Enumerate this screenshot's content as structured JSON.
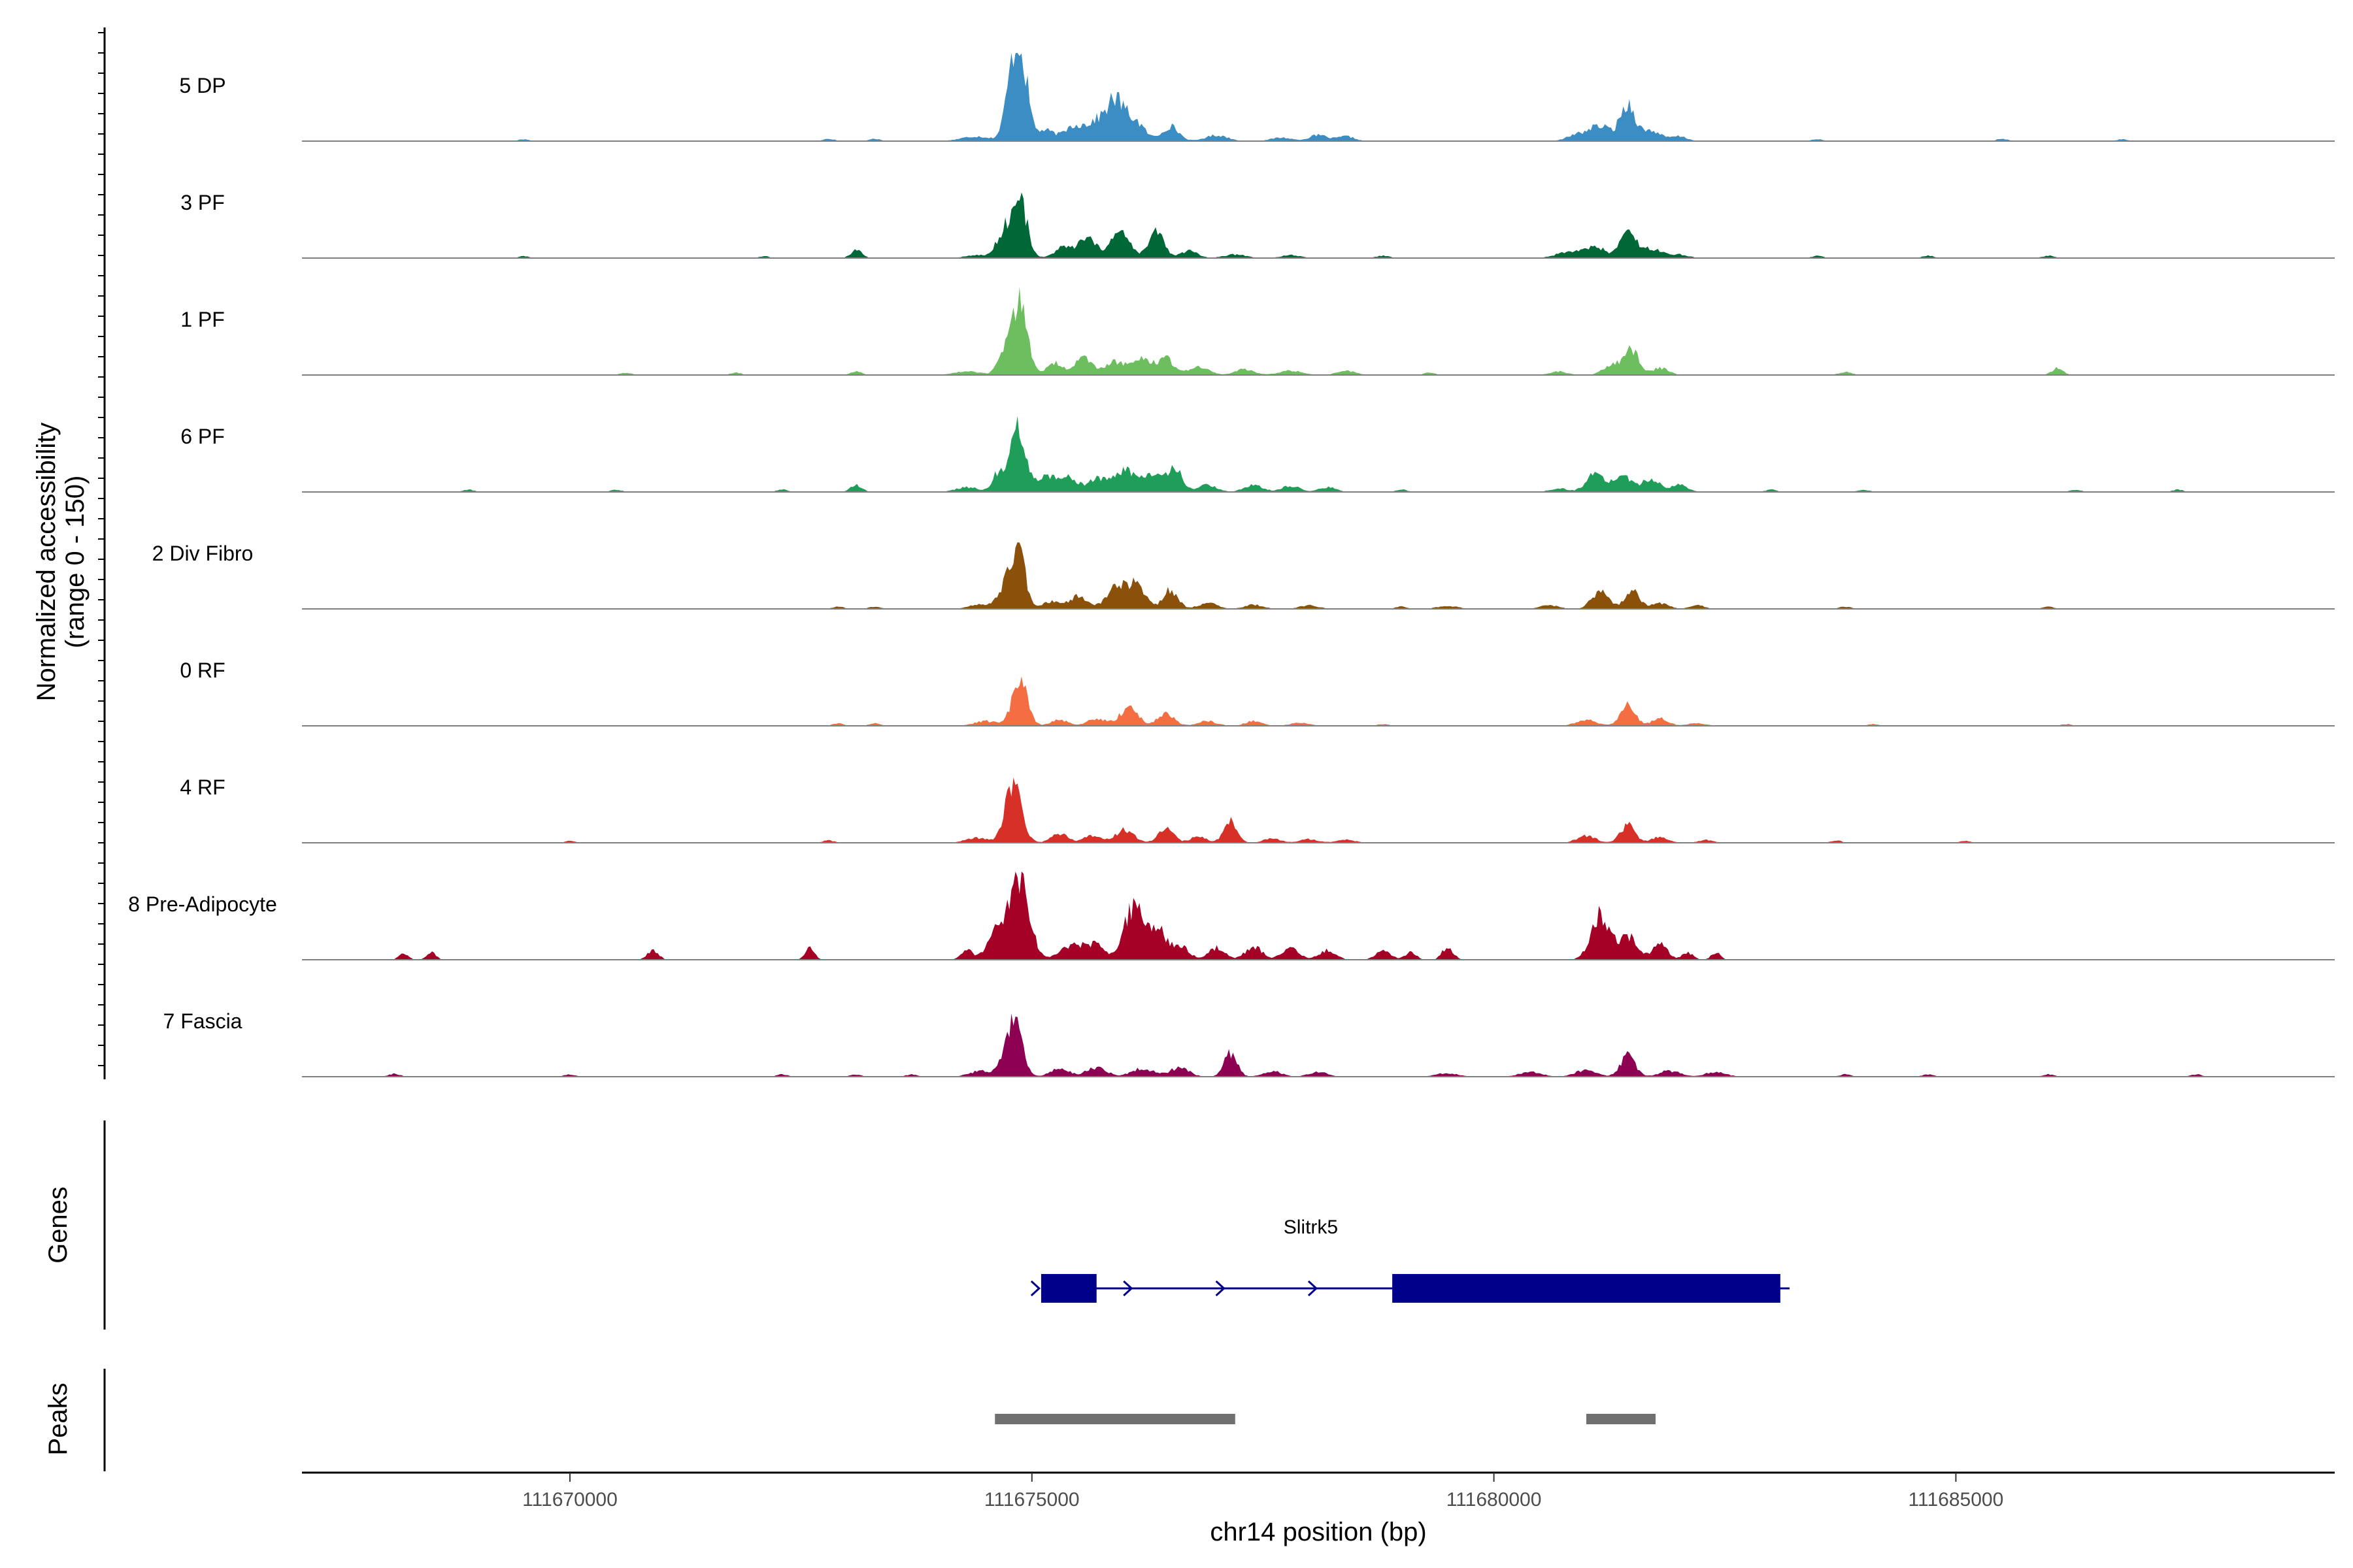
{
  "chart_data": {
    "type": "area",
    "title": "",
    "xlabel": "chr14 position (bp)",
    "ylabel_line1": "Normalized accessibility",
    "ylabel_line2": "(range 0 - 150)",
    "ylim": [
      0,
      150
    ],
    "xlim": [
      111667100,
      111689100
    ],
    "x_ticks": [
      {
        "value": 111670000,
        "label": "111670000"
      },
      {
        "value": 111675000,
        "label": "111675000"
      },
      {
        "value": 111680000,
        "label": "111680000"
      },
      {
        "value": 111685000,
        "label": "111685000"
      }
    ],
    "tracks": [
      {
        "name": "5 DP",
        "color": "#3b8dc4",
        "peaks": [
          [
            111674400,
            8,
            160
          ],
          [
            111674770,
            62,
            70
          ],
          [
            111674870,
            150,
            80
          ],
          [
            111675150,
            18,
            90
          ],
          [
            111675450,
            25,
            100
          ],
          [
            111675700,
            32,
            110
          ],
          [
            111675900,
            60,
            90
          ],
          [
            111676100,
            35,
            110
          ],
          [
            111676500,
            25,
            90
          ],
          [
            111677000,
            10,
            120
          ],
          [
            111677700,
            6,
            110
          ],
          [
            111678100,
            10,
            100
          ],
          [
            111678400,
            8,
            90
          ],
          [
            111680900,
            10,
            110
          ],
          [
            111681150,
            25,
            120
          ],
          [
            111681450,
            62,
            80
          ],
          [
            111681700,
            18,
            100
          ],
          [
            111682000,
            8,
            90
          ],
          [
            111672800,
            4,
            60
          ],
          [
            111673300,
            4,
            60
          ],
          [
            111669500,
            3,
            60
          ],
          [
            111683500,
            3,
            60
          ],
          [
            111685500,
            4,
            60
          ],
          [
            111686800,
            3,
            60
          ]
        ]
      },
      {
        "name": "3 PF",
        "color": "#006837",
        "peaks": [
          [
            111674400,
            5,
            120
          ],
          [
            111674700,
            45,
            80
          ],
          [
            111674870,
            95,
            80
          ],
          [
            111675350,
            18,
            100
          ],
          [
            111675600,
            32,
            90
          ],
          [
            111675950,
            42,
            110
          ],
          [
            111676350,
            45,
            80
          ],
          [
            111676700,
            12,
            90
          ],
          [
            111677200,
            6,
            120
          ],
          [
            111677800,
            5,
            100
          ],
          [
            111680800,
            10,
            130
          ],
          [
            111681100,
            18,
            120
          ],
          [
            111681450,
            45,
            80
          ],
          [
            111681700,
            16,
            110
          ],
          [
            111682000,
            6,
            100
          ],
          [
            111673100,
            14,
            60
          ],
          [
            111678800,
            4,
            70
          ],
          [
            111683500,
            4,
            60
          ],
          [
            111684700,
            4,
            60
          ],
          [
            111686000,
            4,
            60
          ],
          [
            111669500,
            3,
            60
          ],
          [
            111672100,
            3,
            60
          ]
        ]
      },
      {
        "name": "1 PF",
        "color": "#6cbe5f",
        "peaks": [
          [
            111674300,
            6,
            140
          ],
          [
            111674700,
            40,
            70
          ],
          [
            111674870,
            130,
            80
          ],
          [
            111675250,
            20,
            90
          ],
          [
            111675550,
            28,
            90
          ],
          [
            111675900,
            22,
            120
          ],
          [
            111676200,
            25,
            110
          ],
          [
            111676450,
            28,
            80
          ],
          [
            111676800,
            14,
            110
          ],
          [
            111677300,
            10,
            100
          ],
          [
            111677800,
            8,
            120
          ],
          [
            111678400,
            7,
            100
          ],
          [
            111680700,
            6,
            100
          ],
          [
            111681300,
            20,
            100
          ],
          [
            111681500,
            40,
            70
          ],
          [
            111681800,
            12,
            90
          ],
          [
            111673100,
            6,
            60
          ],
          [
            111686100,
            12,
            60
          ],
          [
            111683800,
            5,
            70
          ],
          [
            111670600,
            4,
            60
          ],
          [
            111671800,
            4,
            60
          ],
          [
            111679300,
            4,
            60
          ]
        ]
      },
      {
        "name": "6 PF",
        "color": "#1e9e58",
        "peaks": [
          [
            111674300,
            8,
            120
          ],
          [
            111674650,
            35,
            70
          ],
          [
            111674850,
            110,
            80
          ],
          [
            111675150,
            30,
            90
          ],
          [
            111675400,
            25,
            90
          ],
          [
            111675700,
            22,
            100
          ],
          [
            111676000,
            38,
            110
          ],
          [
            111676300,
            30,
            100
          ],
          [
            111676550,
            38,
            80
          ],
          [
            111676900,
            12,
            100
          ],
          [
            111677400,
            12,
            100
          ],
          [
            111677800,
            10,
            100
          ],
          [
            111678200,
            8,
            90
          ],
          [
            111680700,
            6,
            90
          ],
          [
            111681100,
            30,
            100
          ],
          [
            111681400,
            25,
            100
          ],
          [
            111681700,
            22,
            90
          ],
          [
            111682000,
            12,
            90
          ],
          [
            111673100,
            12,
            60
          ],
          [
            111668900,
            4,
            60
          ],
          [
            111670500,
            4,
            60
          ],
          [
            111672300,
            4,
            60
          ],
          [
            111679000,
            4,
            60
          ],
          [
            111683000,
            4,
            60
          ],
          [
            111684000,
            4,
            60
          ],
          [
            111686300,
            4,
            60
          ],
          [
            111687400,
            4,
            60
          ]
        ]
      },
      {
        "name": "2 Div Fibro",
        "color": "#8b510a",
        "peaks": [
          [
            111674450,
            8,
            120
          ],
          [
            111674700,
            30,
            70
          ],
          [
            111674850,
            95,
            80
          ],
          [
            111675200,
            12,
            90
          ],
          [
            111675500,
            22,
            100
          ],
          [
            111675950,
            40,
            120
          ],
          [
            111676150,
            30,
            90
          ],
          [
            111676500,
            32,
            80
          ],
          [
            111676900,
            10,
            100
          ],
          [
            111677400,
            7,
            100
          ],
          [
            111678000,
            6,
            100
          ],
          [
            111679500,
            5,
            110
          ],
          [
            111680600,
            6,
            100
          ],
          [
            111681150,
            30,
            90
          ],
          [
            111681500,
            30,
            80
          ],
          [
            111681800,
            10,
            90
          ],
          [
            111682200,
            6,
            80
          ],
          [
            111672900,
            4,
            60
          ],
          [
            111673300,
            4,
            60
          ],
          [
            111683800,
            4,
            60
          ],
          [
            111686000,
            4,
            60
          ],
          [
            111679000,
            4,
            60
          ]
        ]
      },
      {
        "name": "0 RF",
        "color": "#f46d43",
        "peaks": [
          [
            111674500,
            8,
            120
          ],
          [
            111674870,
            78,
            80
          ],
          [
            111675300,
            10,
            90
          ],
          [
            111675700,
            12,
            100
          ],
          [
            111676050,
            30,
            100
          ],
          [
            111676450,
            20,
            90
          ],
          [
            111676900,
            8,
            100
          ],
          [
            111677400,
            8,
            90
          ],
          [
            111677900,
            6,
            100
          ],
          [
            111681000,
            10,
            110
          ],
          [
            111681450,
            35,
            80
          ],
          [
            111681800,
            12,
            90
          ],
          [
            111682200,
            5,
            90
          ],
          [
            111672900,
            4,
            60
          ],
          [
            111673300,
            4,
            60
          ],
          [
            111678800,
            3,
            60
          ],
          [
            111684100,
            3,
            60
          ],
          [
            111686200,
            3,
            60
          ]
        ]
      },
      {
        "name": "4 RF",
        "color": "#d73027",
        "peaks": [
          [
            111674400,
            8,
            120
          ],
          [
            111674800,
            95,
            90
          ],
          [
            111675300,
            15,
            90
          ],
          [
            111675650,
            12,
            90
          ],
          [
            111676000,
            22,
            100
          ],
          [
            111676450,
            25,
            80
          ],
          [
            111676800,
            10,
            90
          ],
          [
            111677150,
            40,
            70
          ],
          [
            111677600,
            8,
            90
          ],
          [
            111678000,
            6,
            100
          ],
          [
            111678400,
            5,
            100
          ],
          [
            111681000,
            12,
            100
          ],
          [
            111681450,
            30,
            80
          ],
          [
            111681800,
            10,
            90
          ],
          [
            111682300,
            5,
            80
          ],
          [
            111672800,
            4,
            60
          ],
          [
            111670000,
            3,
            60
          ],
          [
            111683700,
            4,
            60
          ],
          [
            111685100,
            3,
            60
          ]
        ]
      },
      {
        "name": "8 Pre-Adipocyte",
        "color": "#a50026",
        "peaks": [
          [
            111668200,
            12,
            50
          ],
          [
            111668500,
            12,
            50
          ],
          [
            111670900,
            16,
            60
          ],
          [
            111672600,
            20,
            50
          ],
          [
            111674300,
            15,
            70
          ],
          [
            111674600,
            40,
            90
          ],
          [
            111674850,
            150,
            110
          ],
          [
            111675450,
            25,
            140
          ],
          [
            111675700,
            20,
            100
          ],
          [
            111676100,
            90,
            100
          ],
          [
            111676350,
            50,
            100
          ],
          [
            111676600,
            22,
            100
          ],
          [
            111677000,
            20,
            90
          ],
          [
            111677400,
            22,
            90
          ],
          [
            111677800,
            22,
            90
          ],
          [
            111678200,
            16,
            90
          ],
          [
            111678800,
            16,
            80
          ],
          [
            111679100,
            12,
            60
          ],
          [
            111679500,
            22,
            60
          ],
          [
            111681150,
            75,
            100
          ],
          [
            111681450,
            40,
            100
          ],
          [
            111681800,
            26,
            80
          ],
          [
            111682100,
            12,
            60
          ],
          [
            111682400,
            12,
            50
          ]
        ]
      },
      {
        "name": "7 Fascia",
        "color": "#8e0152",
        "peaks": [
          [
            111674450,
            10,
            120
          ],
          [
            111674800,
            95,
            90
          ],
          [
            111675300,
            14,
            100
          ],
          [
            111675700,
            16,
            110
          ],
          [
            111676200,
            14,
            120
          ],
          [
            111676600,
            16,
            100
          ],
          [
            111677150,
            40,
            70
          ],
          [
            111677600,
            10,
            100
          ],
          [
            111678100,
            8,
            100
          ],
          [
            111679500,
            6,
            120
          ],
          [
            111680400,
            8,
            120
          ],
          [
            111681000,
            12,
            110
          ],
          [
            111681450,
            35,
            80
          ],
          [
            111681900,
            10,
            110
          ],
          [
            111682400,
            8,
            110
          ],
          [
            111668100,
            5,
            60
          ],
          [
            111670000,
            4,
            60
          ],
          [
            111672300,
            4,
            60
          ],
          [
            111673100,
            4,
            60
          ],
          [
            111673700,
            4,
            60
          ],
          [
            111683800,
            4,
            60
          ],
          [
            111684700,
            4,
            60
          ],
          [
            111686000,
            4,
            60
          ],
          [
            111687600,
            4,
            60
          ]
        ]
      }
    ],
    "genes_label": "Genes",
    "peaks_label": "Peaks",
    "gene": {
      "name": "Slitrk5",
      "start": 111675100,
      "end": 111683200,
      "strand": "+",
      "color": "#00008b",
      "exons": [
        [
          111675100,
          111675700
        ],
        [
          111678900,
          111683100
        ]
      ],
      "arrows": [
        111675050,
        111676050,
        111677050,
        111678050
      ]
    },
    "peak_regions": {
      "color": "#707070",
      "regions": [
        [
          111674600,
          111677200
        ],
        [
          111681000,
          111681750
        ]
      ]
    }
  }
}
